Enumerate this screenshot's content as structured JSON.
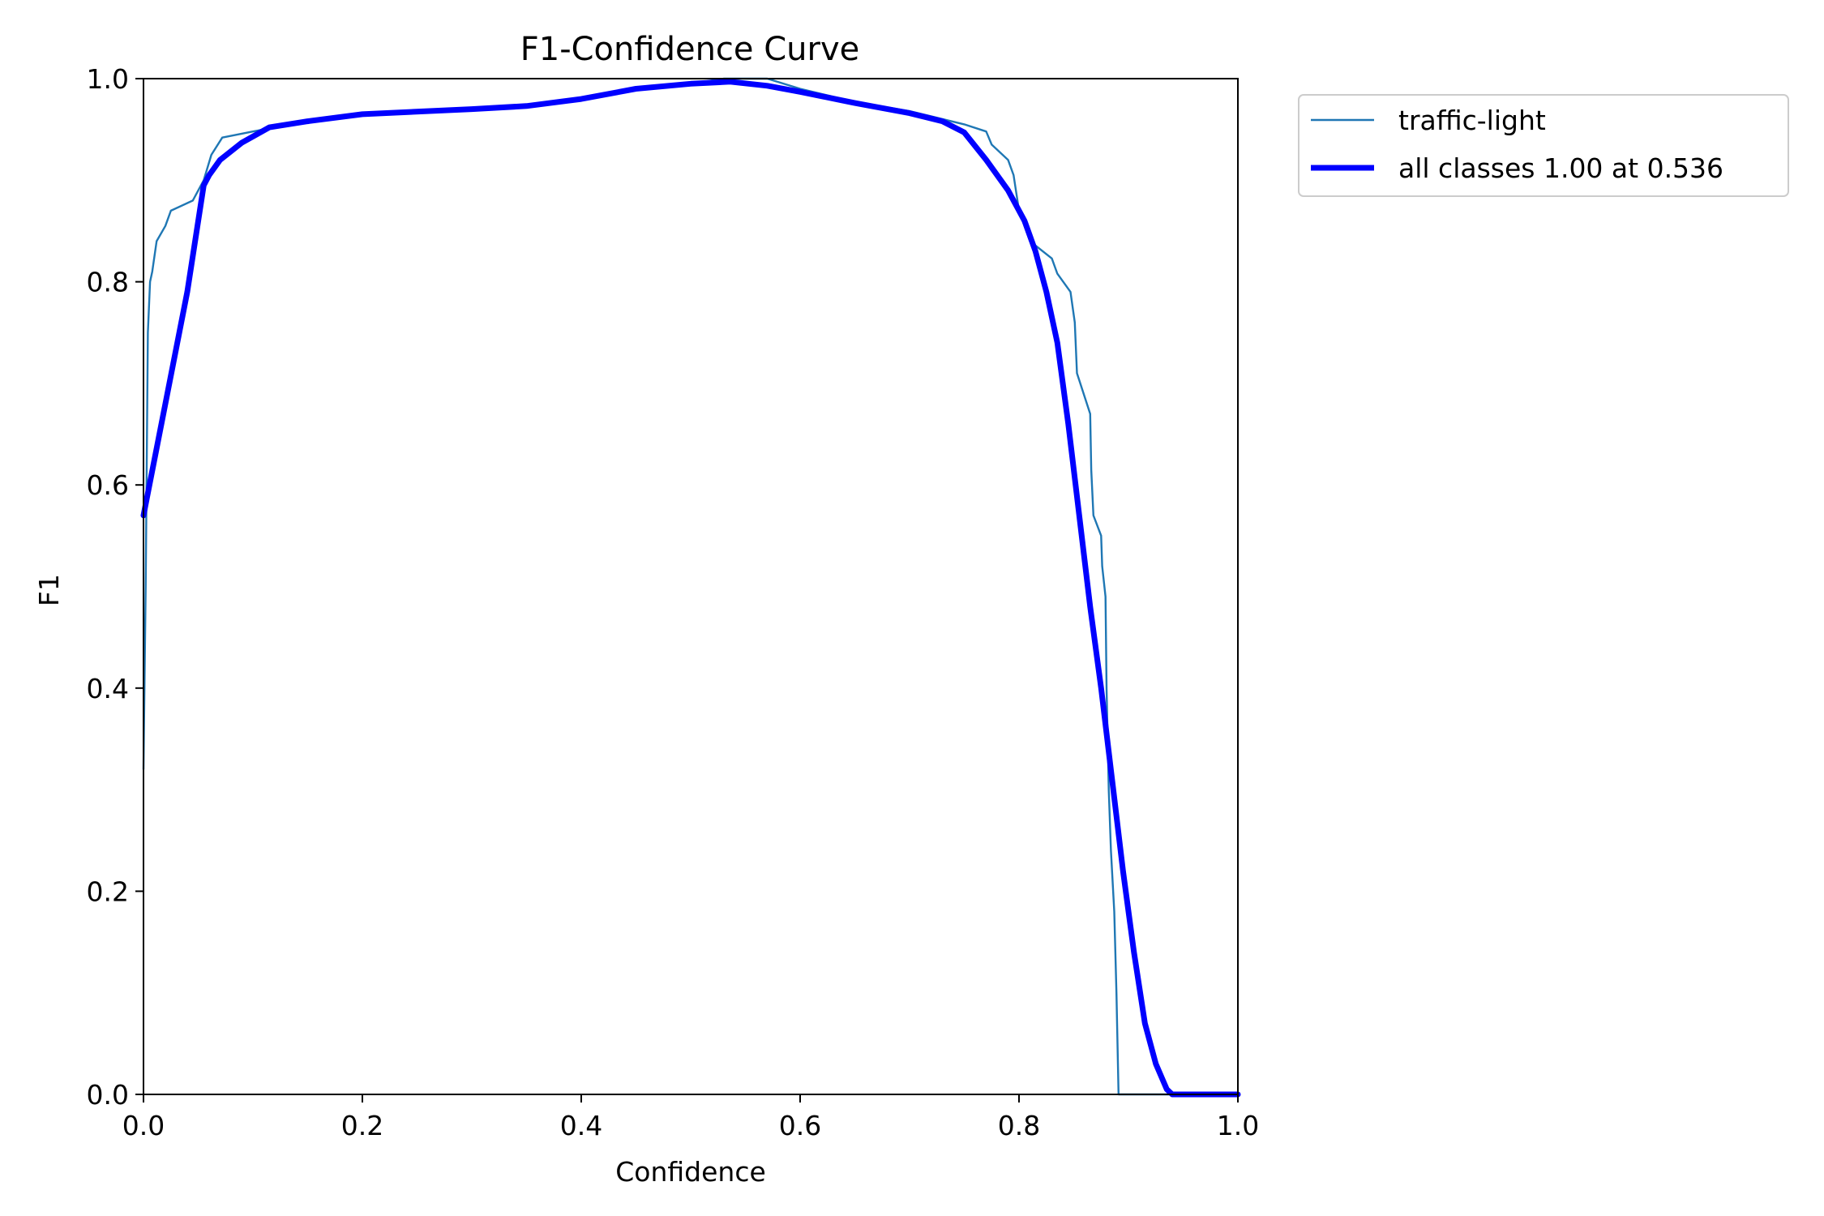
{
  "chart_data": {
    "type": "line",
    "title": "F1-Confidence Curve",
    "xlabel": "Confidence",
    "ylabel": "F1",
    "xlim": [
      0.0,
      1.0
    ],
    "ylim": [
      0.0,
      1.0
    ],
    "xticks": [
      "0.0",
      "0.2",
      "0.4",
      "0.6",
      "0.8",
      "1.0"
    ],
    "yticks": [
      "0.0",
      "0.2",
      "0.4",
      "0.6",
      "0.8",
      "1.0"
    ],
    "grid": false,
    "legend_position": "outside-top-right",
    "series": [
      {
        "name": "traffic-light",
        "color": "#1f77b4",
        "points": [
          [
            0.0,
            0.32
          ],
          [
            0.002,
            0.5
          ],
          [
            0.004,
            0.75
          ],
          [
            0.006,
            0.8
          ],
          [
            0.008,
            0.81
          ],
          [
            0.012,
            0.84
          ],
          [
            0.02,
            0.855
          ],
          [
            0.025,
            0.87
          ],
          [
            0.045,
            0.88
          ],
          [
            0.055,
            0.9
          ],
          [
            0.062,
            0.925
          ],
          [
            0.072,
            0.942
          ],
          [
            0.1,
            0.948
          ],
          [
            0.12,
            0.952
          ],
          [
            0.15,
            0.958
          ],
          [
            0.2,
            0.965
          ],
          [
            0.3,
            0.97
          ],
          [
            0.35,
            0.973
          ],
          [
            0.4,
            0.98
          ],
          [
            0.45,
            0.99
          ],
          [
            0.5,
            0.995
          ],
          [
            0.53,
            1.0
          ],
          [
            0.57,
            1.0
          ],
          [
            0.6,
            0.99
          ],
          [
            0.65,
            0.977
          ],
          [
            0.7,
            0.968
          ],
          [
            0.75,
            0.955
          ],
          [
            0.77,
            0.948
          ],
          [
            0.775,
            0.935
          ],
          [
            0.79,
            0.92
          ],
          [
            0.795,
            0.905
          ],
          [
            0.8,
            0.87
          ],
          [
            0.81,
            0.84
          ],
          [
            0.83,
            0.823
          ],
          [
            0.835,
            0.808
          ],
          [
            0.847,
            0.79
          ],
          [
            0.851,
            0.76
          ],
          [
            0.853,
            0.71
          ],
          [
            0.865,
            0.67
          ],
          [
            0.866,
            0.615
          ],
          [
            0.868,
            0.57
          ],
          [
            0.875,
            0.55
          ],
          [
            0.876,
            0.52
          ],
          [
            0.879,
            0.49
          ],
          [
            0.88,
            0.4
          ],
          [
            0.882,
            0.3
          ],
          [
            0.884,
            0.24
          ],
          [
            0.887,
            0.18
          ],
          [
            0.889,
            0.1
          ],
          [
            0.891,
            0.0
          ],
          [
            1.0,
            0.0
          ]
        ]
      },
      {
        "name": "all classes 1.00 at 0.536",
        "color": "#0000ff",
        "points": [
          [
            0.0,
            0.57
          ],
          [
            0.02,
            0.68
          ],
          [
            0.04,
            0.79
          ],
          [
            0.055,
            0.895
          ],
          [
            0.06,
            0.905
          ],
          [
            0.07,
            0.92
          ],
          [
            0.09,
            0.937
          ],
          [
            0.115,
            0.952
          ],
          [
            0.15,
            0.958
          ],
          [
            0.2,
            0.965
          ],
          [
            0.3,
            0.97
          ],
          [
            0.35,
            0.973
          ],
          [
            0.4,
            0.98
          ],
          [
            0.45,
            0.99
          ],
          [
            0.5,
            0.995
          ],
          [
            0.536,
            0.997
          ],
          [
            0.57,
            0.993
          ],
          [
            0.6,
            0.987
          ],
          [
            0.65,
            0.976
          ],
          [
            0.7,
            0.966
          ],
          [
            0.73,
            0.958
          ],
          [
            0.75,
            0.947
          ],
          [
            0.77,
            0.92
          ],
          [
            0.79,
            0.89
          ],
          [
            0.805,
            0.86
          ],
          [
            0.815,
            0.83
          ],
          [
            0.825,
            0.79
          ],
          [
            0.835,
            0.74
          ],
          [
            0.845,
            0.66
          ],
          [
            0.855,
            0.57
          ],
          [
            0.865,
            0.48
          ],
          [
            0.875,
            0.4
          ],
          [
            0.885,
            0.31
          ],
          [
            0.895,
            0.22
          ],
          [
            0.905,
            0.14
          ],
          [
            0.915,
            0.07
          ],
          [
            0.925,
            0.03
          ],
          [
            0.935,
            0.005
          ],
          [
            0.94,
            0.0
          ],
          [
            1.0,
            0.0
          ]
        ]
      }
    ]
  }
}
